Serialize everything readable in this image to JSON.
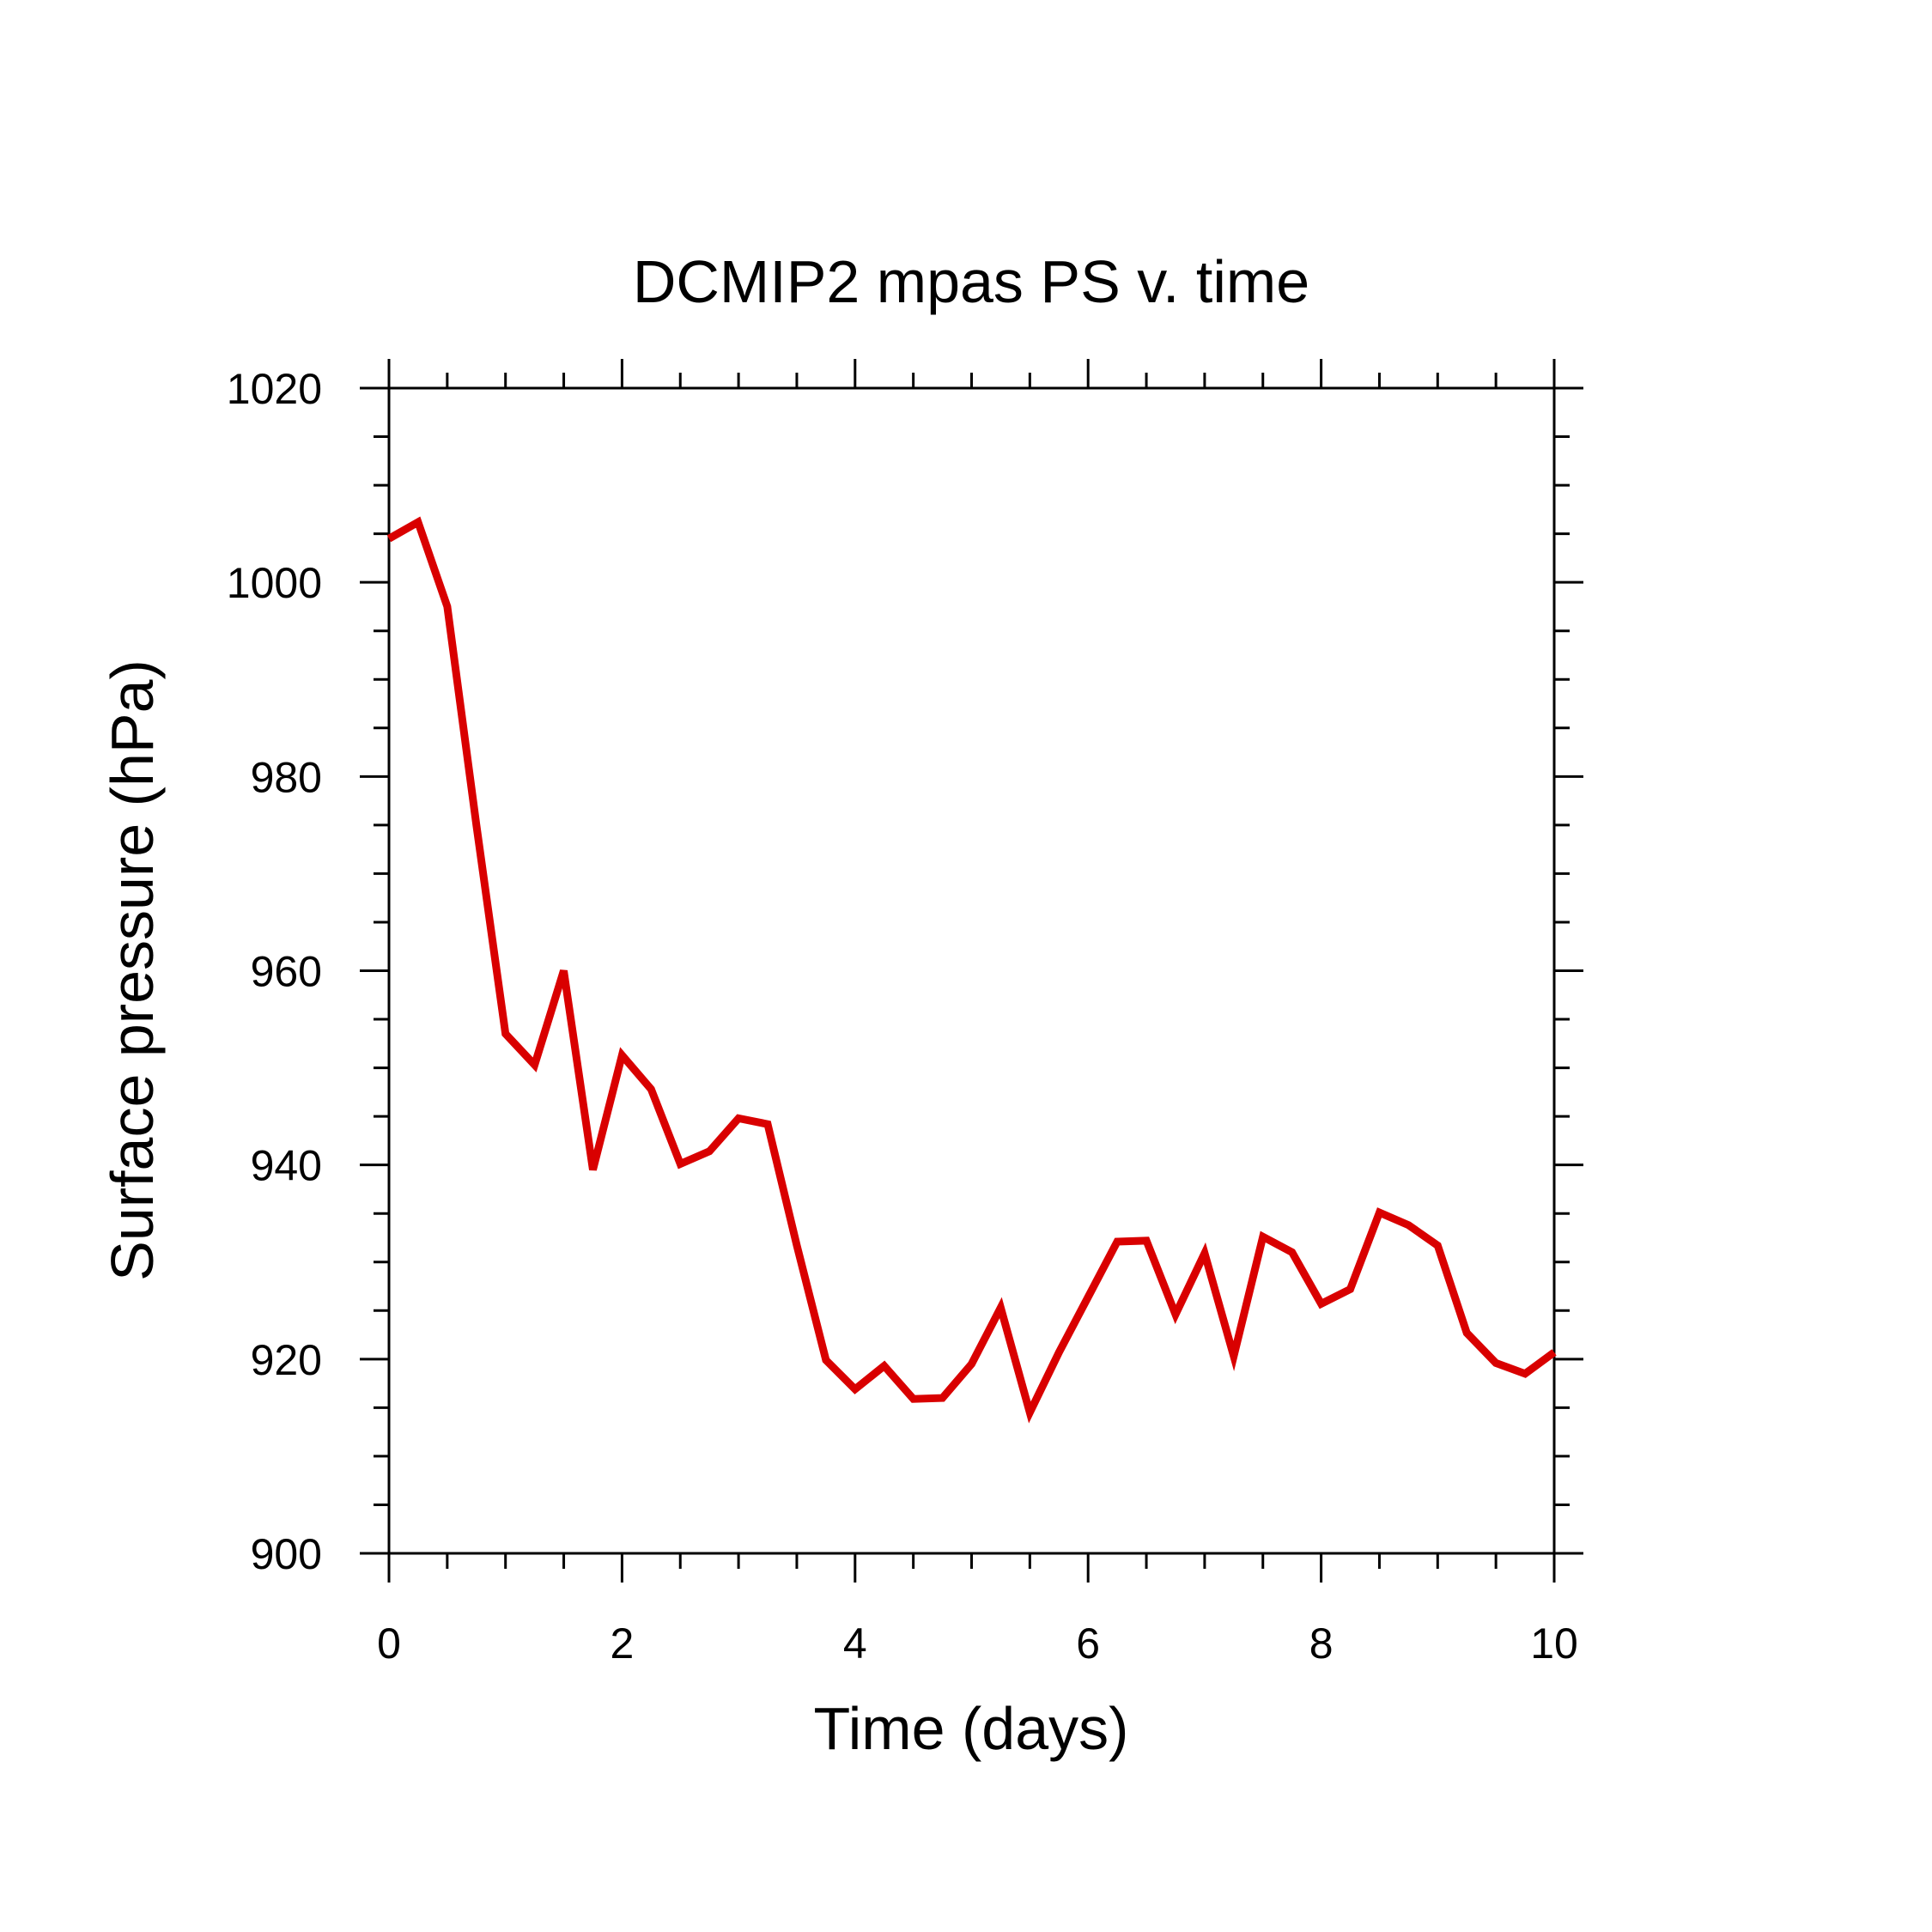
{
  "chart_data": {
    "type": "line",
    "title": "DCMIP2 mpas PS v. time",
    "xlabel": "Time (days)",
    "ylabel": "Surface pressure (hPa)",
    "xlim": [
      0,
      10
    ],
    "ylim": [
      900,
      1020
    ],
    "x_ticks": [
      0,
      2,
      4,
      6,
      8,
      10
    ],
    "x_tick_labels": [
      "0",
      "2",
      "4",
      "6",
      "8",
      "10"
    ],
    "x_minor_step": 0.5,
    "y_ticks": [
      900,
      920,
      940,
      960,
      980,
      1000,
      1020
    ],
    "y_tick_labels": [
      "900",
      "920",
      "940",
      "960",
      "980",
      "1000",
      "1020"
    ],
    "y_minor_step": 5,
    "grid": false,
    "series_color": "#d90000",
    "x": [
      0,
      0.25,
      0.5,
      0.75,
      1,
      1.25,
      1.5,
      1.75,
      2,
      2.25,
      2.5,
      2.75,
      3,
      3.25,
      3.5,
      3.75,
      4,
      4.25,
      4.5,
      4.75,
      5,
      5.25,
      5.5,
      5.75,
      6,
      6.25,
      6.5,
      6.75,
      7,
      7.25,
      7.5,
      7.75,
      8,
      8.25,
      8.5,
      8.75,
      9,
      9.25,
      9.5,
      9.75,
      10
    ],
    "series": [
      {
        "values": [
          1004.5,
          1006.2,
          997.5,
          975,
          953.5,
          950.3,
          960,
          939.5,
          951.3,
          947.8,
          940.1,
          941.4,
          944.8,
          944.2,
          931.7,
          919.9,
          916.9,
          919.3,
          915.9,
          916,
          919.5,
          925.3,
          914.5,
          920.7,
          926.4,
          932.1,
          932.2,
          924.6,
          930.9,
          920.3,
          932.6,
          931,
          925.7,
          927.2,
          935.1,
          933.8,
          931.7,
          922.7,
          919.6,
          918.5,
          920.7
        ]
      }
    ]
  }
}
